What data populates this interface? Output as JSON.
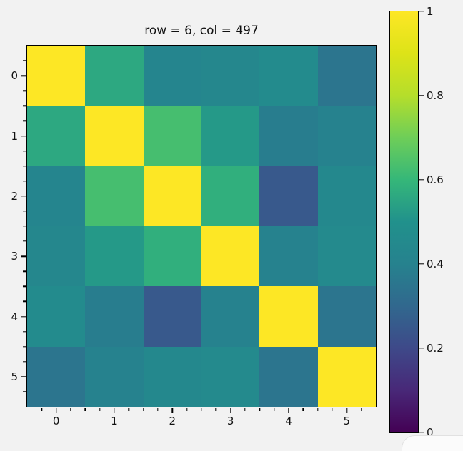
{
  "figure": {
    "background": "#f2f2f2"
  },
  "chart_data": {
    "type": "heatmap",
    "title": "row = 6, col = 497",
    "x_ticks": [
      "0",
      "1",
      "2",
      "3",
      "4",
      "5"
    ],
    "y_ticks": [
      "0",
      "1",
      "2",
      "3",
      "4",
      "5"
    ],
    "vmin": 0,
    "vmax": 1,
    "grid": false,
    "legend": "colorbar-right",
    "colormap": "viridis",
    "colormap_stops": [
      "#440154",
      "#482878",
      "#3e4989",
      "#31688e",
      "#26828e",
      "#21918c",
      "#35b779",
      "#6ece58",
      "#b5de2b",
      "#dde318",
      "#fde725"
    ],
    "colorbar_tick_labels": [
      "1",
      "0.8",
      "0.6",
      "0.4",
      "0.2",
      "0"
    ],
    "colorbar_tick_values": [
      1,
      0.8,
      0.6,
      0.4,
      0.2,
      0
    ],
    "values": [
      [
        1.0,
        0.56,
        0.42,
        0.43,
        0.46,
        0.35
      ],
      [
        0.56,
        1.0,
        0.63,
        0.52,
        0.38,
        0.4
      ],
      [
        0.42,
        0.63,
        1.0,
        0.58,
        0.25,
        0.44
      ],
      [
        0.43,
        0.52,
        0.58,
        1.0,
        0.4,
        0.45
      ],
      [
        0.46,
        0.38,
        0.25,
        0.4,
        1.0,
        0.35
      ],
      [
        0.35,
        0.4,
        0.44,
        0.45,
        0.35,
        1.0
      ]
    ]
  }
}
